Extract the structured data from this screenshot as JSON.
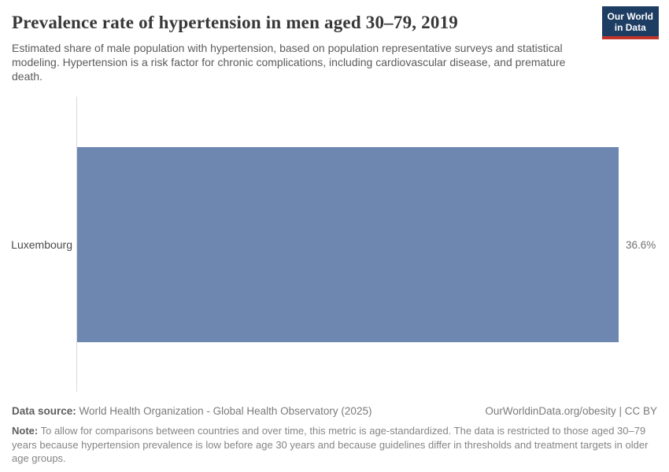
{
  "header": {
    "title": "Prevalence rate of hypertension in men aged 30–79, 2019",
    "subtitle": "Estimated share of male population with hypertension, based on population representative surveys and statistical modeling. Hypertension is a risk factor for chronic complications, including cardiovascular disease, and premature death.",
    "logo": {
      "line1": "Our World",
      "line2": "in Data"
    }
  },
  "chart_data": {
    "type": "bar",
    "orientation": "horizontal",
    "title": "Prevalence rate of hypertension in men aged 30–79, 2019",
    "categories": [
      "Luxembourg"
    ],
    "values": [
      36.6
    ],
    "value_labels": [
      "36.6%"
    ],
    "unit": "%",
    "bar_color": "#6d87b1",
    "axis_color": "#d9d9d9",
    "grid": false,
    "legend": false,
    "value_label_position": "end-of-bar"
  },
  "footer": {
    "datasource_label": "Data source:",
    "datasource_text": " World Health Organization - Global Health Observatory (2025)",
    "link_text": "OurWorldinData.org/obesity | CC BY",
    "note_label": "Note:",
    "note_text": " To allow for comparisons between countries and over time, this metric is age-standardized. The data is restricted to those aged 30–79 years because hypertension prevalence is low before age 30 years and because guidelines differ in thresholds and treatment targets in older age groups."
  },
  "colors": {
    "bar": "#6d87b1",
    "logo_navy": "#1d3d63",
    "logo_red": "#c0342b",
    "title_text": "#383838",
    "body_text": "#5b5b5b",
    "footer_text": "#858585"
  }
}
